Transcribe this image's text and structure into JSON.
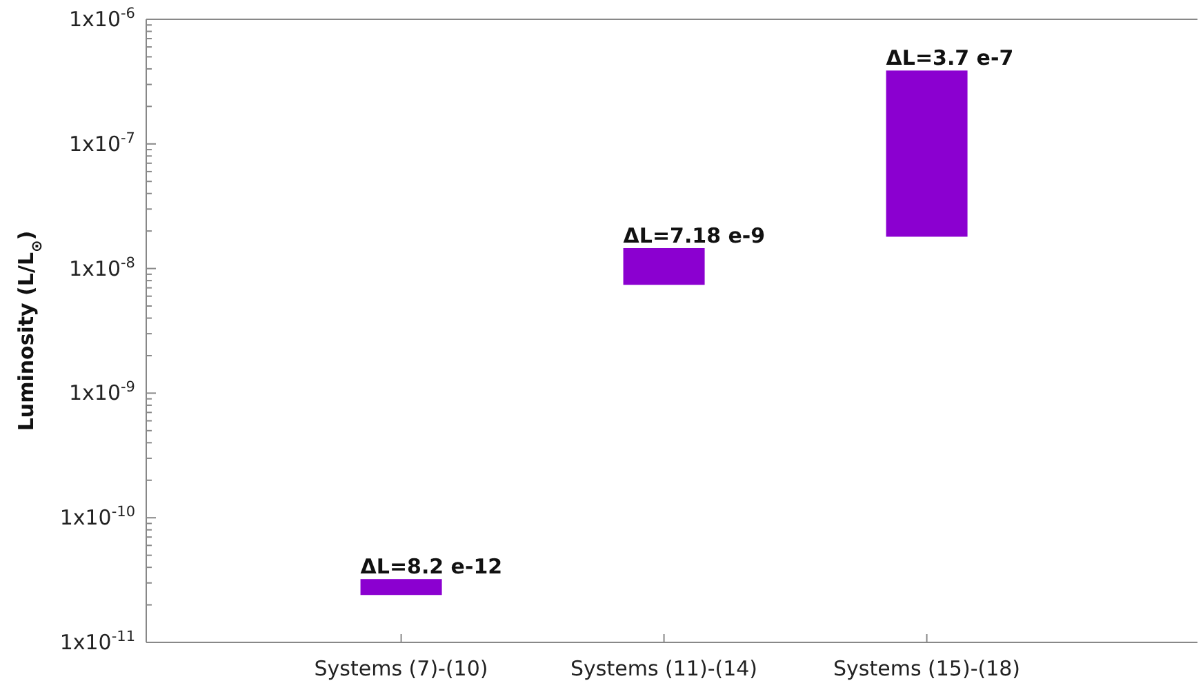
{
  "chart_data": {
    "type": "bar",
    "ylabel": "Luminosity (L/L$_{⊙}$)",
    "categories": [
      "Systems (7)-(10)",
      "Systems (11)-(14)",
      "Systems (15)-(18)"
    ],
    "values": [
      8.2e-12,
      7.18e-09,
      3.7e-07
    ],
    "base": [
      2.4e-11,
      7.4e-09,
      1.8e-08
    ],
    "value_labels": [
      "ΔL=8.2 e-12",
      "ΔL=7.18 e-9",
      "ΔL=3.7 e-7"
    ],
    "color": "#8b00d0",
    "log": true,
    "ylim": [
      1e-11,
      1e-06
    ],
    "yticks": [
      {
        "value": 1e-11,
        "label": "1x10$^{-11}$"
      },
      {
        "value": 2e-11,
        "label": null
      },
      {
        "value": 3e-11,
        "label": null
      },
      {
        "value": 4e-11,
        "label": null
      },
      {
        "value": 5e-11,
        "label": null
      },
      {
        "value": 6e-11,
        "label": null
      },
      {
        "value": 7e-11,
        "label": null
      },
      {
        "value": 8e-11,
        "label": null
      },
      {
        "value": 9e-11,
        "label": null
      },
      {
        "value": 1e-10,
        "label": "1x10$^{-10}$"
      },
      {
        "value": 2e-10,
        "label": null
      },
      {
        "value": 3e-10,
        "label": null
      },
      {
        "value": 4e-10,
        "label": null
      },
      {
        "value": 5e-10,
        "label": null
      },
      {
        "value": 6e-10,
        "label": null
      },
      {
        "value": 7e-10,
        "label": null
      },
      {
        "value": 8e-10,
        "label": null
      },
      {
        "value": 9e-10,
        "label": null
      },
      {
        "value": 1e-09,
        "label": "1x10$^{-9}$"
      },
      {
        "value": 2e-09,
        "label": null
      },
      {
        "value": 3e-09,
        "label": null
      },
      {
        "value": 4e-09,
        "label": null
      },
      {
        "value": 5e-09,
        "label": null
      },
      {
        "value": 6e-09,
        "label": null
      },
      {
        "value": 7e-09,
        "label": null
      },
      {
        "value": 8e-09,
        "label": null
      },
      {
        "value": 9e-09,
        "label": null
      },
      {
        "value": 1e-08,
        "label": "1x10$^{-8}$"
      },
      {
        "value": 2e-08,
        "label": null
      },
      {
        "value": 3e-08,
        "label": null
      },
      {
        "value": 4e-08,
        "label": null
      },
      {
        "value": 5e-08,
        "label": null
      },
      {
        "value": 6e-08,
        "label": null
      },
      {
        "value": 7e-08,
        "label": null
      },
      {
        "value": 8e-08,
        "label": null
      },
      {
        "value": 9e-08,
        "label": null
      },
      {
        "value": 1e-07,
        "label": "1x10$^{-7}$"
      },
      {
        "value": 2e-07,
        "label": null
      },
      {
        "value": 3e-07,
        "label": null
      },
      {
        "value": 4e-07,
        "label": null
      },
      {
        "value": 5e-07,
        "label": null
      },
      {
        "value": 6e-07,
        "label": null
      },
      {
        "value": 7e-07,
        "label": null
      },
      {
        "value": 8e-07,
        "label": null
      },
      {
        "value": 9e-07,
        "label": null
      },
      {
        "value": 1e-06,
        "label": "1x10$^{-6}$"
      }
    ],
    "grid": false
  }
}
